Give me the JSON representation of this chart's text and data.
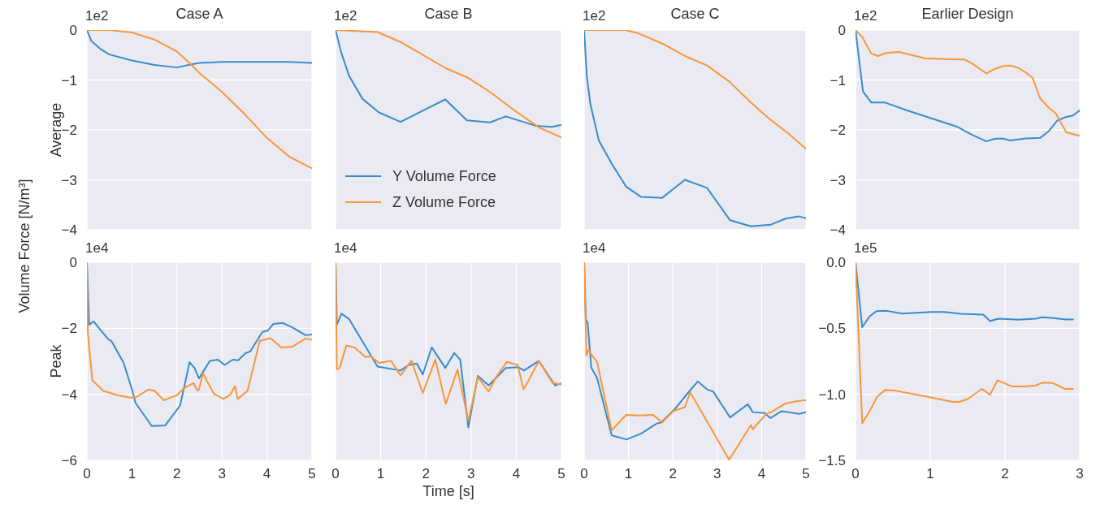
{
  "chart_data": [
    {
      "type": "line",
      "title": "Case A",
      "ylabel": "Average",
      "annotations": [
        "1e2",
        "Volume Force [N/m³]"
      ],
      "xlim": [
        0,
        5
      ],
      "xticks": [
        0,
        1,
        2,
        3,
        4,
        5
      ],
      "ylim": [
        -4,
        0
      ],
      "yticks": [
        {
          "value": 0,
          "label": "0"
        },
        {
          "value": -1,
          "label": "−1"
        },
        {
          "value": -2,
          "label": "−2"
        },
        {
          "value": -3,
          "label": "−3"
        },
        {
          "value": -4,
          "label": "−4"
        }
      ],
      "grid": true,
      "tick_labels": "y",
      "series": [
        {
          "color": "#3b8bc9",
          "x": [
            0,
            0.1,
            0.3,
            0.5,
            1.0,
            1.5,
            2.0,
            2.1,
            2.3,
            2.5,
            3.0,
            3.5,
            4.0,
            4.5,
            5.0
          ],
          "values": [
            0,
            -0.22,
            -0.38,
            -0.49,
            -0.61,
            -0.7,
            -0.75,
            -0.73,
            -0.69,
            -0.66,
            -0.64,
            -0.64,
            -0.64,
            -0.64,
            -0.66
          ]
        },
        {
          "color": "#f8963a",
          "x": [
            0,
            0.5,
            1.0,
            1.5,
            2.0,
            2.3,
            2.5,
            3.0,
            3.5,
            4.0,
            4.5,
            5.0
          ],
          "values": [
            0,
            0,
            -0.05,
            -0.19,
            -0.43,
            -0.68,
            -0.86,
            -1.24,
            -1.68,
            -2.16,
            -2.54,
            -2.77
          ]
        }
      ]
    },
    {
      "type": "line",
      "title": "Case B",
      "annotations": [
        "1e2"
      ],
      "legend": "bottom left",
      "xlim": [
        0,
        5
      ],
      "xticks": [
        0,
        1,
        2,
        3,
        4,
        5
      ],
      "ylim": [
        -4,
        0
      ],
      "yticks": [
        {
          "value": 0,
          "label": null
        },
        {
          "value": -1,
          "label": null
        },
        {
          "value": -2,
          "label": null
        },
        {
          "value": -3,
          "label": null
        },
        {
          "value": -4,
          "label": null
        }
      ],
      "grid": true,
      "tick_labels": false,
      "series": [
        {
          "name": "Y Volume Force",
          "color": "#3b8bc9",
          "x": [
            0,
            0.12,
            0.3,
            0.6,
            0.96,
            1.44,
            1.92,
            2.43,
            2.91,
            3.42,
            3.77,
            4.44,
            4.8,
            5.0
          ],
          "values": [
            0,
            -0.43,
            -0.92,
            -1.38,
            -1.65,
            -1.84,
            -1.62,
            -1.39,
            -1.81,
            -1.85,
            -1.73,
            -1.92,
            -1.94,
            -1.9
          ]
        },
        {
          "name": "Z Volume Force",
          "color": "#f8963a",
          "x": [
            0,
            0.93,
            1.44,
            1.92,
            2.43,
            2.94,
            3.42,
            3.9,
            4.5,
            5.0
          ],
          "values": [
            0,
            -0.04,
            -0.24,
            -0.49,
            -0.76,
            -0.96,
            -1.24,
            -1.57,
            -1.95,
            -2.15
          ]
        }
      ]
    },
    {
      "type": "line",
      "title": "Case C",
      "annotations": [
        "1e2"
      ],
      "xlim": [
        0,
        5
      ],
      "xticks": [
        0,
        1,
        2,
        3,
        4,
        5
      ],
      "ylim": [
        -4,
        0
      ],
      "yticks": [
        {
          "value": 0,
          "label": null
        },
        {
          "value": -1,
          "label": null
        },
        {
          "value": -2,
          "label": null
        },
        {
          "value": -3,
          "label": null
        },
        {
          "value": -4,
          "label": null
        }
      ],
      "grid": true,
      "tick_labels": false,
      "series": [
        {
          "color": "#3b8bc9",
          "x": [
            0,
            0.06,
            0.14,
            0.33,
            0.63,
            0.95,
            1.28,
            1.76,
            2.27,
            2.77,
            3.29,
            3.76,
            4.2,
            4.53,
            4.83,
            5.0
          ],
          "values": [
            0,
            -0.93,
            -1.48,
            -2.21,
            -2.69,
            -3.14,
            -3.34,
            -3.36,
            -3.0,
            -3.16,
            -3.81,
            -3.93,
            -3.9,
            -3.78,
            -3.73,
            -3.77
          ]
        },
        {
          "color": "#f8963a",
          "x": [
            0,
            0.94,
            1.24,
            1.78,
            2.27,
            2.77,
            3.27,
            3.76,
            4.15,
            4.6,
            5.0
          ],
          "values": [
            0,
            0,
            -0.07,
            -0.28,
            -0.52,
            -0.71,
            -1.03,
            -1.45,
            -1.76,
            -2.07,
            -2.38
          ]
        }
      ]
    },
    {
      "type": "line",
      "title": "Earlier Design",
      "annotations": [
        "1e2"
      ],
      "xlim": [
        0,
        3
      ],
      "xticks": [
        0,
        1,
        2
      ],
      "ylim": [
        -4,
        0
      ],
      "yticks": [
        {
          "value": 0,
          "label": "0"
        },
        {
          "value": -1,
          "label": "−1"
        },
        {
          "value": -2,
          "label": "−2"
        },
        {
          "value": -3,
          "label": "−3"
        },
        {
          "value": -4,
          "label": "−4"
        }
      ],
      "grid": true,
      "tick_labels": "y",
      "series": [
        {
          "color": "#3b8bc9",
          "x": [
            0,
            0.1,
            0.21,
            0.39,
            0.69,
            1.04,
            1.35,
            1.55,
            1.75,
            1.86,
            1.96,
            2.07,
            2.28,
            2.47,
            2.59,
            2.7,
            2.82,
            2.91,
            3.0
          ],
          "values": [
            0,
            -1.23,
            -1.45,
            -1.45,
            -1.61,
            -1.78,
            -1.93,
            -2.09,
            -2.23,
            -2.18,
            -2.17,
            -2.21,
            -2.17,
            -2.16,
            -2.02,
            -1.81,
            -1.74,
            -1.71,
            -1.61
          ]
        },
        {
          "color": "#f8963a",
          "x": [
            0,
            0.09,
            0.21,
            0.3,
            0.41,
            0.58,
            0.94,
            1.37,
            1.46,
            1.55,
            1.75,
            1.86,
            1.98,
            2.07,
            2.18,
            2.28,
            2.37,
            2.47,
            2.59,
            2.68,
            2.82,
            3.0
          ],
          "values": [
            0,
            -0.14,
            -0.47,
            -0.52,
            -0.46,
            -0.44,
            -0.57,
            -0.59,
            -0.59,
            -0.66,
            -0.87,
            -0.78,
            -0.72,
            -0.71,
            -0.76,
            -0.85,
            -0.96,
            -1.37,
            -1.56,
            -1.67,
            -2.05,
            -2.12
          ]
        }
      ]
    },
    {
      "type": "line",
      "ylabel": "Peak",
      "annotations": [
        "1e4"
      ],
      "xlim": [
        0,
        5
      ],
      "xticks": [
        0,
        1,
        2,
        3,
        4,
        5
      ],
      "ylim": [
        -6,
        0
      ],
      "yticks": [
        {
          "value": 0,
          "label": "0"
        },
        {
          "value": -2,
          "label": "−2"
        },
        {
          "value": -4,
          "label": "−4"
        },
        {
          "value": -6,
          "label": "−6"
        }
      ],
      "grid": true,
      "series": [
        {
          "color": "#3b8bc9",
          "x": [
            0,
            0.05,
            0.15,
            0.3,
            0.48,
            0.54,
            0.81,
            1.0,
            1.08,
            1.44,
            1.74,
            2.07,
            2.28,
            2.39,
            2.49,
            2.73,
            2.91,
            3.06,
            3.24,
            3.36,
            3.53,
            3.63,
            3.9,
            4.02,
            4.14,
            4.35,
            4.56,
            4.86,
            5.0
          ],
          "values": [
            0,
            -1.89,
            -1.79,
            -2.05,
            -2.34,
            -2.38,
            -3.03,
            -3.85,
            -4.26,
            -4.96,
            -4.94,
            -4.34,
            -3.03,
            -3.2,
            -3.52,
            -2.99,
            -2.95,
            -3.11,
            -2.95,
            -2.97,
            -2.75,
            -2.7,
            -2.11,
            -2.07,
            -1.87,
            -1.84,
            -1.97,
            -2.21,
            -2.19
          ]
        },
        {
          "color": "#f8963a",
          "x": [
            0,
            0.02,
            0.12,
            0.36,
            0.66,
            0.96,
            1.08,
            1.37,
            1.5,
            1.71,
            2.01,
            2.16,
            2.37,
            2.45,
            2.49,
            2.58,
            2.67,
            2.82,
            3.03,
            3.18,
            3.29,
            3.35,
            3.57,
            3.84,
            4.08,
            4.32,
            4.56,
            4.86,
            5.0
          ],
          "values": [
            0,
            -2.13,
            -3.57,
            -3.89,
            -4.02,
            -4.1,
            -4.1,
            -3.85,
            -3.89,
            -4.18,
            -4.02,
            -3.81,
            -3.66,
            -3.88,
            -3.85,
            -3.36,
            -3.61,
            -3.98,
            -4.14,
            -4.02,
            -3.75,
            -4.14,
            -3.89,
            -2.38,
            -2.3,
            -2.58,
            -2.56,
            -2.31,
            -2.35
          ]
        }
      ]
    },
    {
      "type": "line",
      "xlabel": "Time [s]",
      "annotations": [
        "1e4"
      ],
      "xlim": [
        0,
        5
      ],
      "xticks": [
        0,
        1,
        2,
        3,
        4,
        5
      ],
      "ylim": [
        -6,
        0
      ],
      "yticks": [
        {
          "value": 0,
          "label": null
        },
        {
          "value": -2,
          "label": null
        },
        {
          "value": -4,
          "label": null
        },
        {
          "value": -6,
          "label": null
        }
      ],
      "grid": true,
      "tick_labels": "x",
      "series": [
        {
          "color": "#3b8bc9",
          "x": [
            0,
            0.03,
            0.13,
            0.3,
            0.93,
            1.44,
            1.62,
            1.8,
            1.93,
            2.13,
            2.43,
            2.63,
            2.76,
            2.94,
            3.15,
            3.39,
            3.77,
            4.05,
            4.17,
            4.5,
            4.86,
            5.0
          ],
          "values": [
            0,
            -1.89,
            -1.56,
            -1.72,
            -3.16,
            -3.28,
            -3.11,
            -3.07,
            -3.4,
            -2.58,
            -3.2,
            -2.75,
            -2.95,
            -5.0,
            -3.44,
            -3.73,
            -3.2,
            -3.18,
            -3.28,
            -2.99,
            -3.73,
            -3.67
          ]
        },
        {
          "color": "#f8963a",
          "x": [
            0,
            0.03,
            0.09,
            0.24,
            0.42,
            0.66,
            0.78,
            0.96,
            1.23,
            1.44,
            1.68,
            1.93,
            2.21,
            2.44,
            2.7,
            2.94,
            3.15,
            3.39,
            3.54,
            3.79,
            4.03,
            4.16,
            4.2,
            4.5,
            4.8,
            5.0
          ],
          "values": [
            0,
            -3.24,
            -3.2,
            -2.52,
            -2.58,
            -2.87,
            -2.85,
            -3.05,
            -2.99,
            -3.43,
            -2.98,
            -3.96,
            -2.95,
            -4.29,
            -3.25,
            -4.8,
            -3.48,
            -3.92,
            -3.51,
            -3.02,
            -3.11,
            -3.84,
            -3.77,
            -2.99,
            -3.65,
            -3.7
          ]
        }
      ]
    },
    {
      "type": "line",
      "annotations": [
        "1e4"
      ],
      "xlim": [
        0,
        5
      ],
      "xticks": [
        0,
        1,
        2,
        3,
        4,
        5
      ],
      "ylim": [
        -6,
        0
      ],
      "yticks": [
        {
          "value": 0,
          "label": null
        },
        {
          "value": -2,
          "label": null
        },
        {
          "value": -4,
          "label": null
        },
        {
          "value": -6,
          "label": null
        }
      ],
      "grid": true,
      "tick_labels": "x",
      "series": [
        {
          "color": "#3b8bc9",
          "x": [
            0,
            0.04,
            0.08,
            0.16,
            0.29,
            0.62,
            0.95,
            1.28,
            1.63,
            1.74,
            2.05,
            2.27,
            2.56,
            2.77,
            2.91,
            3.29,
            3.69,
            3.8,
            4.07,
            4.2,
            4.45,
            4.85,
            5.0
          ],
          "values": [
            0,
            -1.74,
            -1.84,
            -3.19,
            -3.5,
            -5.24,
            -5.37,
            -5.19,
            -4.89,
            -4.85,
            -4.44,
            -4.07,
            -3.61,
            -3.85,
            -3.92,
            -4.7,
            -4.3,
            -4.54,
            -4.57,
            -4.72,
            -4.51,
            -4.59,
            -4.54
          ]
        },
        {
          "color": "#f8963a",
          "x": [
            0,
            0.05,
            0.1,
            0.19,
            0.29,
            0.62,
            0.95,
            1.24,
            1.55,
            1.76,
            2.01,
            2.27,
            2.39,
            3.27,
            3.76,
            3.8,
            4.11,
            4.22,
            4.53,
            4.83,
            5.0
          ],
          "values": [
            0,
            -2.83,
            -2.65,
            -2.85,
            -3.01,
            -5.09,
            -4.62,
            -4.64,
            -4.62,
            -4.85,
            -4.51,
            -4.39,
            -3.94,
            -5.98,
            -4.93,
            -5.06,
            -4.59,
            -4.54,
            -4.28,
            -4.2,
            -4.18
          ]
        }
      ]
    },
    {
      "type": "line",
      "annotations": [
        "1e5"
      ],
      "xlim": [
        0,
        3
      ],
      "xticks": [
        0,
        1,
        2,
        3
      ],
      "ylim": [
        -1.5,
        0
      ],
      "yticks": [
        {
          "value": 0,
          "label": "0.0"
        },
        {
          "value": -0.5,
          "label": "−0.5"
        },
        {
          "value": -1,
          "label": "−1.0"
        },
        {
          "value": -1.5,
          "label": "−1.5"
        }
      ],
      "grid": true,
      "series": [
        {
          "color": "#3b8bc9",
          "x": [
            0,
            0.09,
            0.19,
            0.28,
            0.42,
            0.62,
            1.01,
            1.19,
            1.41,
            1.71,
            1.8,
            1.91,
            2.18,
            2.41,
            2.5,
            2.64,
            2.82,
            2.91
          ],
          "values": [
            0,
            -0.492,
            -0.409,
            -0.37,
            -0.368,
            -0.389,
            -0.376,
            -0.376,
            -0.391,
            -0.396,
            -0.446,
            -0.427,
            -0.435,
            -0.427,
            -0.417,
            -0.422,
            -0.433,
            -0.433
          ]
        },
        {
          "color": "#f8963a",
          "x": [
            0,
            0.09,
            0.19,
            0.29,
            0.4,
            0.53,
            1.01,
            1.3,
            1.39,
            1.5,
            1.69,
            1.8,
            1.9,
            2.09,
            2.28,
            2.41,
            2.5,
            2.64,
            2.8,
            2.91
          ],
          "values": [
            0,
            -1.218,
            -1.127,
            -1.018,
            -0.966,
            -0.972,
            -1.023,
            -1.057,
            -1.057,
            -1.036,
            -0.959,
            -1.003,
            -0.894,
            -0.94,
            -0.94,
            -0.933,
            -0.912,
            -0.915,
            -0.959,
            -0.959
          ]
        }
      ]
    }
  ]
}
